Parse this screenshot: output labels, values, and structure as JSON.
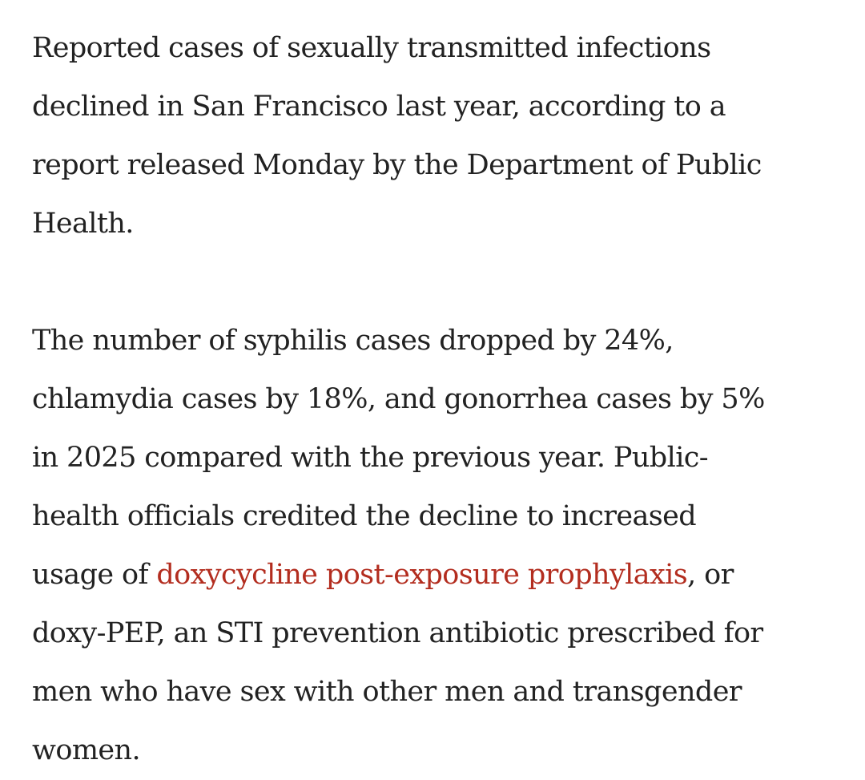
{
  "article": {
    "paragraph_1": {
      "lines": [
        "Reported cases of sexually transmitted infections",
        "declined in San Francisco last year, according to a",
        "report released Monday by the Department of Public",
        "Health."
      ]
    },
    "paragraph_2": {
      "line_1": "The number of syphilis cases dropped by 24%,",
      "line_2": "chlamydia cases by 18%, and gonorrhea cases by 5%",
      "line_3": "in 2025 compared with the previous year. Public-",
      "line_4": "health officials credited the decline to increased",
      "line_5_before": "usage of ",
      "link_text": "doxycycline post-exposure prophylaxis",
      "line_5_after": ", or",
      "line_6": "doxy-PEP, an STI prevention antibiotic prescribed for",
      "line_7": "men who have sex with other men and transgender",
      "line_8": "women."
    }
  },
  "colors": {
    "text": "#222222",
    "link": "#b32d1f",
    "background": "#ffffff"
  }
}
